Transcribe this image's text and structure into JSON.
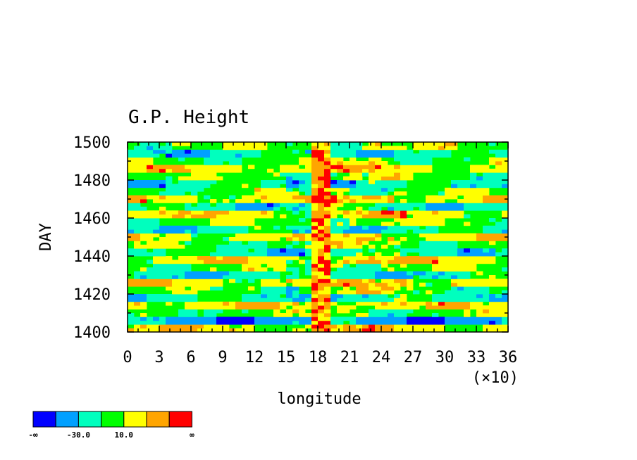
{
  "chart_data": {
    "type": "heatmap",
    "title": "G.P. Height",
    "xlabel": "longitude",
    "ylabel": "DAY",
    "x_multiplier_label": "(×10)",
    "xlim": [
      0,
      36
    ],
    "ylim": [
      1400,
      1500
    ],
    "x_ticks": [
      0,
      3,
      6,
      9,
      12,
      15,
      18,
      21,
      24,
      27,
      30,
      33,
      36
    ],
    "y_ticks": [
      1400,
      1420,
      1440,
      1460,
      1480,
      1500
    ],
    "x_tick_labels": [
      "0",
      "3",
      "6",
      "9",
      "12",
      "15",
      "18",
      "21",
      "24",
      "27",
      "30",
      "33",
      "36"
    ],
    "y_tick_labels": [
      "1400",
      "1420",
      "1440",
      "1460",
      "1480",
      "1500"
    ],
    "colorbar": {
      "colors": [
        "#0000ff",
        "#00a0ff",
        "#00ffbe",
        "#00ff00",
        "#ffff00",
        "#ffa500",
        "#ff0000"
      ],
      "labels": [
        "-∞",
        "-30.0",
        "10.0",
        "∞"
      ]
    },
    "bands": [
      {
        "day_from": 1400,
        "day_to": 1404,
        "level": 4
      },
      {
        "day_from": 1404,
        "day_to": 1408,
        "level": 1
      },
      {
        "day_from": 1408,
        "day_to": 1412,
        "level": 3
      },
      {
        "day_from": 1412,
        "day_to": 1416,
        "level": 4
      },
      {
        "day_from": 1416,
        "day_to": 1420,
        "level": 2
      },
      {
        "day_from": 1420,
        "day_to": 1424,
        "level": 3
      },
      {
        "day_from": 1424,
        "day_to": 1428,
        "level": 4
      },
      {
        "day_from": 1428,
        "day_to": 1432,
        "level": 2
      },
      {
        "day_from": 1432,
        "day_to": 1436,
        "level": 3
      },
      {
        "day_from": 1436,
        "day_to": 1440,
        "level": 4
      },
      {
        "day_from": 1440,
        "day_to": 1444,
        "level": 2
      },
      {
        "day_from": 1444,
        "day_to": 1448,
        "level": 3
      },
      {
        "day_from": 1448,
        "day_to": 1452,
        "level": 4
      },
      {
        "day_from": 1452,
        "day_to": 1456,
        "level": 2
      },
      {
        "day_from": 1456,
        "day_to": 1460,
        "level": 3
      },
      {
        "day_from": 1460,
        "day_to": 1464,
        "level": 4
      },
      {
        "day_from": 1464,
        "day_to": 1468,
        "level": 2
      },
      {
        "day_from": 1468,
        "day_to": 1472,
        "level": 4
      },
      {
        "day_from": 1472,
        "day_to": 1476,
        "level": 3
      },
      {
        "day_from": 1476,
        "day_to": 1480,
        "level": 2
      },
      {
        "day_from": 1480,
        "day_to": 1484,
        "level": 3
      },
      {
        "day_from": 1484,
        "day_to": 1488,
        "level": 4
      },
      {
        "day_from": 1488,
        "day_to": 1492,
        "level": 3
      },
      {
        "day_from": 1492,
        "day_to": 1496,
        "level": 2
      },
      {
        "day_from": 1496,
        "day_to": 1500,
        "level": 3
      }
    ],
    "ridge": {
      "lon_from": 17,
      "lon_to": 19,
      "level_min": 4,
      "level_max": 6
    }
  }
}
